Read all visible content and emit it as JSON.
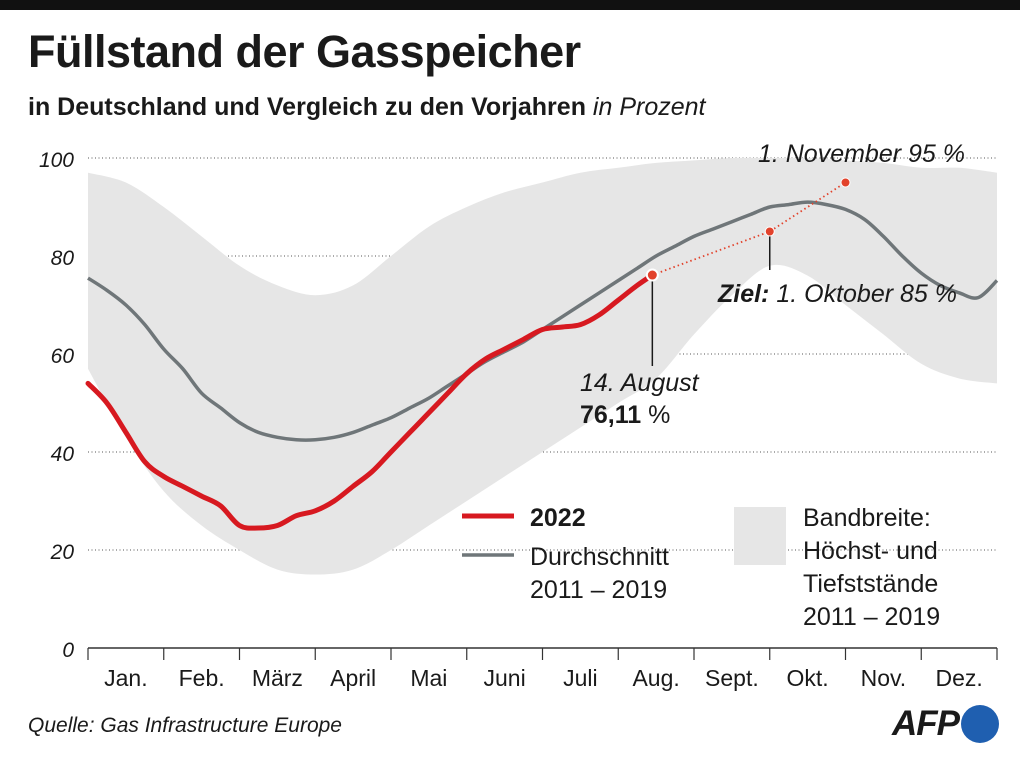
{
  "title": "Füllstand der Gasspeicher",
  "subtitle": "in Deutschland und Vergleich zu den Vorjahren",
  "subtitle_unit": "in Prozent",
  "source": "Quelle: Gas Infrastructure Europe",
  "logo_text": "AFP",
  "colors": {
    "series_2022": "#d71920",
    "average": "#6f7679",
    "band": "#e6e6e6",
    "target": "#e2422b",
    "logo_blue": "#1f5fb0"
  },
  "chart_data": {
    "type": "line",
    "x_unit": "months (0 = 1. Jan., 12 = 31. Dez.)",
    "ylim": [
      0,
      100
    ],
    "yticks": [
      0,
      20,
      40,
      60,
      80,
      100
    ],
    "ytick_labels": [
      "0",
      "20",
      "40",
      "60",
      "80",
      "100"
    ],
    "grid": "horizontal dotted",
    "months": [
      "Jan.",
      "Feb.",
      "März",
      "April",
      "Mai",
      "Juni",
      "Juli",
      "Aug.",
      "Sept.",
      "Okt.",
      "Nov.",
      "Dez."
    ],
    "band": {
      "name": "Bandbreite: Höchst- und Tiefststände 2011 – 2019",
      "x": [
        0,
        0.5,
        1,
        1.5,
        2,
        2.5,
        3,
        3.5,
        4,
        4.5,
        5,
        5.5,
        6,
        6.5,
        7,
        7.5,
        8,
        8.5,
        9,
        9.5,
        10,
        10.5,
        11,
        11.5,
        12
      ],
      "upper": [
        97,
        95,
        90,
        84,
        78,
        74,
        72,
        74,
        80,
        86,
        90,
        93,
        95,
        97,
        98,
        99,
        99.5,
        100,
        100,
        100,
        99.5,
        99,
        98,
        98,
        97
      ],
      "lower": [
        57,
        43,
        32,
        25,
        20,
        16,
        15,
        16,
        20,
        25,
        30,
        35,
        40,
        45,
        50,
        55,
        64,
        72,
        78,
        76,
        70,
        64,
        58,
        55,
        54
      ]
    },
    "series": [
      {
        "name": "2022",
        "x": [
          0,
          0.25,
          0.5,
          0.75,
          1,
          1.25,
          1.5,
          1.75,
          2,
          2.25,
          2.5,
          2.75,
          3,
          3.25,
          3.5,
          3.75,
          4,
          4.25,
          4.5,
          4.75,
          5,
          5.25,
          5.5,
          5.75,
          6,
          6.25,
          6.5,
          6.75,
          7,
          7.25,
          7.45
        ],
        "values": [
          54,
          50,
          44,
          38,
          35,
          33,
          31,
          29,
          25,
          24.5,
          25,
          27,
          28,
          30,
          33,
          36,
          40,
          44,
          48,
          52,
          56,
          59,
          61,
          63,
          65,
          65.5,
          66,
          68,
          71,
          74,
          76.11
        ]
      },
      {
        "name": "Durchschnitt 2011 – 2019",
        "x": [
          0,
          0.25,
          0.5,
          0.75,
          1,
          1.25,
          1.5,
          1.75,
          2,
          2.25,
          2.5,
          2.75,
          3,
          3.25,
          3.5,
          3.75,
          4,
          4.25,
          4.5,
          4.75,
          5,
          5.25,
          5.5,
          5.75,
          6,
          6.25,
          6.5,
          6.75,
          7,
          7.25,
          7.5,
          7.75,
          8,
          8.25,
          8.5,
          8.75,
          9,
          9.25,
          9.5,
          9.75,
          10,
          10.25,
          10.5,
          10.75,
          11,
          11.25,
          11.5,
          11.75,
          12
        ],
        "values": [
          75.5,
          73,
          70,
          66,
          61,
          57,
          52,
          49,
          46,
          44,
          43,
          42.5,
          42.5,
          43,
          44,
          45.5,
          47,
          49,
          51,
          53.5,
          56,
          58.5,
          60.5,
          62.5,
          65,
          67.5,
          70,
          72.5,
          75,
          77.5,
          80,
          82,
          84,
          85.5,
          87,
          88.5,
          90,
          90.5,
          91,
          90.5,
          89.5,
          87.5,
          84,
          80,
          76.5,
          74,
          72.5,
          71.5,
          75
        ]
      },
      {
        "name": "Ziel",
        "style": "dotted",
        "x": [
          7.45,
          9,
          10
        ],
        "values": [
          76.11,
          85,
          95
        ]
      }
    ],
    "annotations": {
      "current_date": "14. August",
      "current_value": "76,11",
      "current_unit": "%",
      "target1_prefix": "Ziel:",
      "target1_label": "1. Oktober 85 %",
      "target2_label": "1. November 95 %"
    },
    "legend": {
      "series_2022": "2022",
      "average_line1": "Durchschnitt",
      "average_line2": "2011 – 2019",
      "band_line1": "Bandbreite:",
      "band_line2": "Höchst- und",
      "band_line3": "Tiefststände",
      "band_line4": "2011 – 2019"
    }
  }
}
